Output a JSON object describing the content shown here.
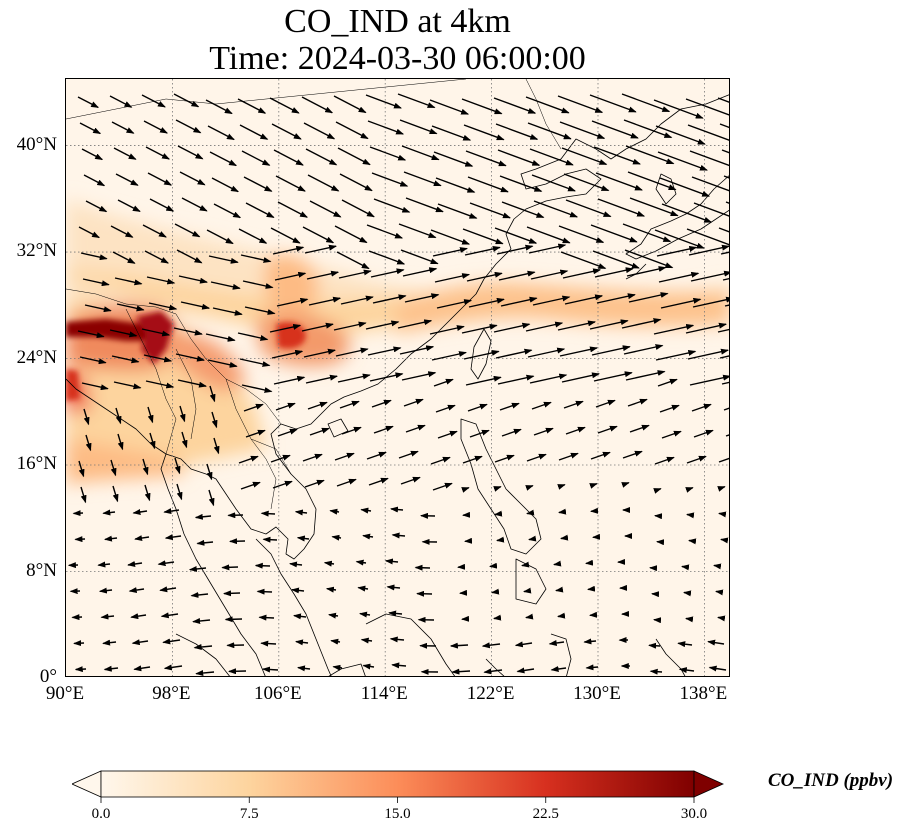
{
  "title_line1": "CO_IND at 4km",
  "title_line2": "Time: 2024-03-30 06:00:00",
  "map": {
    "lon_range": [
      90,
      140
    ],
    "lat_range": [
      0,
      45
    ],
    "lat_ticks": [
      {
        "value": 0,
        "label": "0°"
      },
      {
        "value": 8,
        "label": "8°N"
      },
      {
        "value": 16,
        "label": "16°N"
      },
      {
        "value": 24,
        "label": "24°N"
      },
      {
        "value": 32,
        "label": "32°N"
      },
      {
        "value": 40,
        "label": "40°N"
      }
    ],
    "lon_ticks": [
      {
        "value": 90,
        "label": "90°E"
      },
      {
        "value": 98,
        "label": "98°E"
      },
      {
        "value": 106,
        "label": "106°E"
      },
      {
        "value": 114,
        "label": "114°E"
      },
      {
        "value": 122,
        "label": "122°E"
      },
      {
        "value": 130,
        "label": "130°E"
      },
      {
        "value": 138,
        "label": "138°E"
      }
    ],
    "gridlines": true,
    "colormap": "OrRd"
  },
  "colorbar": {
    "label": "CO_IND (ppbv)",
    "min": 0.0,
    "max": 30.0,
    "extend": "both",
    "ticks": [
      {
        "value": 0.0,
        "label": "0.0"
      },
      {
        "value": 7.5,
        "label": "7.5"
      },
      {
        "value": 15.0,
        "label": "15.0"
      },
      {
        "value": 22.5,
        "label": "22.5"
      },
      {
        "value": 30.0,
        "label": "30.0"
      }
    ],
    "colors": [
      "#fff7ec",
      "#fdd49e",
      "#fc8d59",
      "#d7301f",
      "#7f0000"
    ]
  }
}
